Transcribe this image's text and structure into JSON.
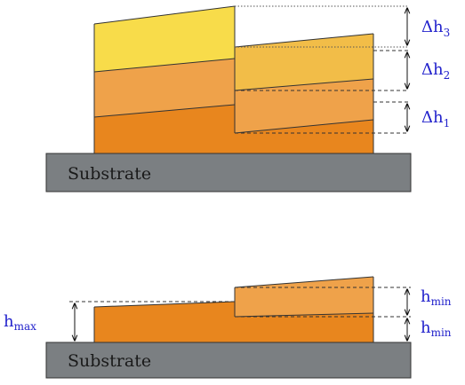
{
  "colors": {
    "substrate": "#7b7f82",
    "layer_bottom": "#e8861e",
    "layer_mid": "#efa24a",
    "layer_top": "#f8dc4a",
    "layer_top_shifted": "#f2bd48",
    "label_blue": "#2222cc"
  },
  "top_diagram": {
    "substrate_label": "Substrate",
    "dims": [
      {
        "base": "Δh",
        "sub": "3"
      },
      {
        "base": "Δh",
        "sub": "2"
      },
      {
        "base": "Δh",
        "sub": "1"
      }
    ]
  },
  "bottom_diagram": {
    "substrate_label": "Substrate",
    "left_dim": {
      "base": "h",
      "sub": "max"
    },
    "right_dims": [
      {
        "base": "h",
        "sub": "min"
      },
      {
        "base": "h",
        "sub": "min"
      }
    ]
  }
}
